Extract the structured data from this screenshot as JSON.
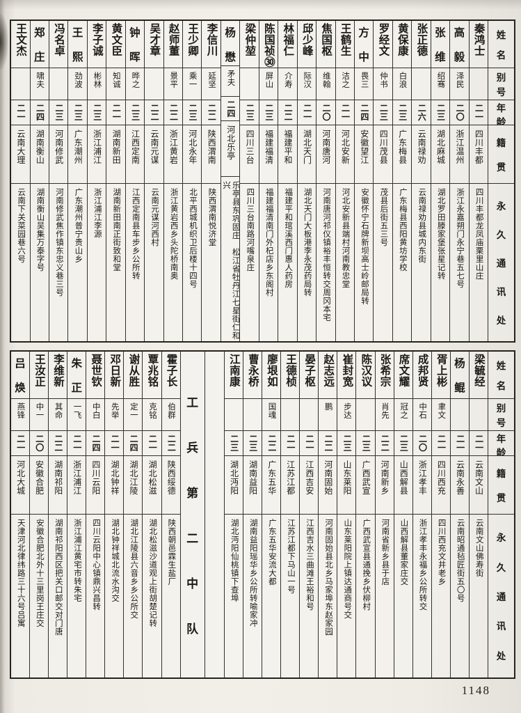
{
  "page": {
    "number": "1148"
  },
  "roster_headers": [
    "姓名",
    "别号",
    "年龄",
    "籍贯",
    "永久通讯处"
  ],
  "sections": [
    {
      "name": "top-roster",
      "entries": [
        {
          "name": "秦鸿士",
          "alias": "",
          "age": "二一",
          "origin": "四川丰都",
          "address": "四川丰都龙凤庙栗里山庄"
        },
        {
          "name": "高毅",
          "alias": "泽民",
          "age": "二〇",
          "origin": "浙江温州",
          "address": "浙江永嘉朔门永宁巷五七号"
        },
        {
          "name": "张维",
          "alias": "绍骞",
          "age": "二三",
          "origin": "湖北麻城",
          "address": "湖北罗田滕家堡张星记转"
        },
        {
          "name": "张正德",
          "alias": "",
          "age": "二六",
          "origin": "云南禄劝",
          "address": "云南禄劝县城内东街"
        },
        {
          "name": "黄保康",
          "alias": "白浪",
          "age": "二三",
          "origin": "广东梅县",
          "address": "广东梅县西阳黄坊学校"
        },
        {
          "name": "罗经文",
          "alias": "仲书",
          "age": "二三",
          "origin": "四川茂县",
          "address": "茂县后街五三号"
        },
        {
          "name": "方中",
          "alias": "畏三",
          "age": "二四",
          "origin": "安徽望江",
          "address": "安徽怀宁石牌新坝高士岭邮局转"
        },
        {
          "name": "王鹤生",
          "alias": "洁之",
          "age": "二一",
          "origin": "河北安新",
          "address": "河北安新县端村河南教忠堂"
        },
        {
          "name": "焦国枢",
          "alias": "维翰",
          "age": "二〇",
          "origin": "河南唐河",
          "address": "河南唐河祁仪镇裕丰恒转交周冈本宅"
        },
        {
          "name": "邱少峰",
          "alias": "际汉",
          "age": "二一",
          "origin": "湖北天门",
          "address": "湖北天门大板港李永茂药局转"
        },
        {
          "name": "林福仁",
          "alias": "介寿",
          "age": "二二",
          "origin": "福建平和",
          "address": "福建平和琯溪西门惠人药房"
        },
        {
          "name": "陈国祯㉚",
          "alias": "屏山",
          "age": "二三",
          "origin": "福建福清",
          "address": "福建福清南门外杞店乡东阁村"
        },
        {
          "name": "梁仲堃",
          "alias": "",
          "age": "二三",
          "origin": "四川三台",
          "address": "四川三台南路河嘴泉庄"
        },
        {
          "name": "杨懋",
          "alias": "矛夫",
          "age": "二四",
          "origin": "河北乐亭",
          "address": "乐亭县东巩固庄　松江省牡丹江七星街仁和兴"
        },
        {
          "name": "李信川",
          "alias": "延坚",
          "age": "二二",
          "origin": "陕西渭南",
          "address": "陕西渭南悦济堂"
        },
        {
          "name": "王少卿",
          "alias": "乘一",
          "age": "二三",
          "origin": "河北永年",
          "address": "北平西城机织卫后楼十四号"
        },
        {
          "name": "赵师董",
          "alias": "景平",
          "age": "二二",
          "origin": "浙江黄岩",
          "address": "浙江黄岩西乡头陀桥南奥"
        },
        {
          "name": "吴才章",
          "alias": "",
          "age": "二二",
          "origin": "云南元谋",
          "address": "云南元谋河西村"
        },
        {
          "name": "钟晖",
          "alias": "晔之",
          "age": "二三",
          "origin": "江西定南",
          "address": "江西定南县车步乡公所转"
        },
        {
          "name": "黄文臣",
          "alias": "知诚",
          "age": "二一",
          "origin": "湖南新田",
          "address": "湖南新田南正街致和堂"
        },
        {
          "name": "李子诚",
          "alias": "彬林",
          "age": "二三",
          "origin": "浙江浦江",
          "address": "浙江浦江李源"
        },
        {
          "name": "王熙",
          "alias": "劲波",
          "age": "二三",
          "origin": "广东潮州",
          "address": "广东潮州普宁贵山乡"
        },
        {
          "name": "冯名卓",
          "alias": "",
          "age": "二三",
          "origin": "河南修武",
          "address": "河南修武焦作镇东忠义巷三号"
        },
        {
          "name": "郑庄",
          "alias": "啸夫",
          "age": "二四",
          "origin": "湖南衡山",
          "address": "湖南衡山吴集万泰字号"
        },
        {
          "name": "王文杰",
          "alias": "",
          "age": "二一",
          "origin": "云南大理",
          "address": "云南下关菜园巷六号"
        }
      ]
    },
    {
      "name": "bottom-roster",
      "entries": [
        {
          "name": "梁毓经",
          "alias": "",
          "age": "二一",
          "origin": "云南文山",
          "address": "云南文山佛寿街"
        },
        {
          "name": "杨鲲",
          "alias": "",
          "age": "二一",
          "origin": "云南永善",
          "address": "云南昭通毡匠街五〇号"
        },
        {
          "name": "胥上彬",
          "alias": "聿文",
          "age": "二一",
          "origin": "四川西充",
          "address": "四川西充文井老乡"
        },
        {
          "name": "成邦贤",
          "alias": "中石",
          "age": "二〇",
          "origin": "浙江孝丰",
          "address": "浙江孝丰永福乡公所转交"
        },
        {
          "name": "席文耀",
          "alias": "冠之",
          "age": "二三",
          "origin": "山西解县",
          "address": "山西解县董家庄交"
        },
        {
          "name": "张希宗",
          "alias": "肖先",
          "age": "二二",
          "origin": "河南新乡",
          "address": "河南省新乡县于店"
        },
        {
          "name": "陈汉议",
          "alias": "",
          "age": "二三",
          "origin": "广西武宣",
          "address": "广西武宣县通挽乡伏柳村"
        },
        {
          "name": "崔封宽",
          "alias": "步达",
          "age": "二三",
          "origin": "山东莱阳",
          "address": "山东莱阳院上镇达通商号交"
        },
        {
          "name": "赵志远",
          "alias": "鹏",
          "age": "二二",
          "origin": "河南固始",
          "address": "河南固始县北乡马家埠东赵家园"
        },
        {
          "name": "晏子枢",
          "alias": "",
          "age": "二一",
          "origin": "江西吉安",
          "address": "江西吉水三曲滩王裕和号"
        },
        {
          "name": "王德桢",
          "alias": "",
          "age": "二一",
          "origin": "江苏江都",
          "address": "江苏江都下马山一号"
        },
        {
          "name": "廖垠如",
          "alias": "国魂",
          "age": "二二",
          "origin": "广东五华",
          "address": "广东五华安流大都"
        },
        {
          "name": "曹永桥",
          "alias": "",
          "age": "二三",
          "origin": "湖南益阳",
          "address": "湖南益阳瑶华乡公所转喻家冲"
        },
        {
          "name": "江南康",
          "alias": "",
          "age": "二三",
          "origin": "湖北沔阳",
          "address": "湖北沔阳仙桃镇下查埠"
        },
        {
          "type": "spacer"
        },
        {
          "type": "divider",
          "label": "工兵第二中队"
        },
        {
          "name": "霍子长",
          "alias": "伯群",
          "age": "二二",
          "origin": "陕西绥德",
          "address": "陕西朝邑霖生盐厂"
        },
        {
          "name": "覃兆铭",
          "alias": "克铭",
          "age": "二一",
          "origin": "湖北松滋",
          "address": "湖北松滋沙道观上街胡楚记转"
        },
        {
          "name": "谢从胜",
          "alias": "定一",
          "age": "二四",
          "origin": "湖北江陵",
          "address": "湖北江陵县六音乡乡公所交"
        },
        {
          "name": "邓日新",
          "alias": "先举",
          "age": "二一",
          "origin": "湖北钟祥",
          "address": "湖北钟祥城北流水沟交"
        },
        {
          "name": "聂世钦",
          "alias": "中白",
          "age": "二四",
          "origin": "四川云阳",
          "address": "四川云阳中心镇鼎兴昌转"
        },
        {
          "name": "朱正",
          "alias": "一飞",
          "age": "二一",
          "origin": "浙江浦江",
          "address": "浙江浦江黄宅市转朱宅"
        },
        {
          "name": "李维新",
          "alias": "其命",
          "age": "二二",
          "origin": "湖南祁阳",
          "address": "湖南祁阳西区把关口邮交对门唐"
        },
        {
          "name": "王汝正",
          "alias": "中一",
          "age": "二〇",
          "origin": "安徽合肥",
          "address": "安徽合肥北外十三里岗王庄交"
        },
        {
          "name": "吕焕",
          "alias": "燕锋",
          "age": "二一",
          "origin": "河北大城",
          "address": "天津河北律纬路三十六号吕寓"
        }
      ]
    }
  ]
}
